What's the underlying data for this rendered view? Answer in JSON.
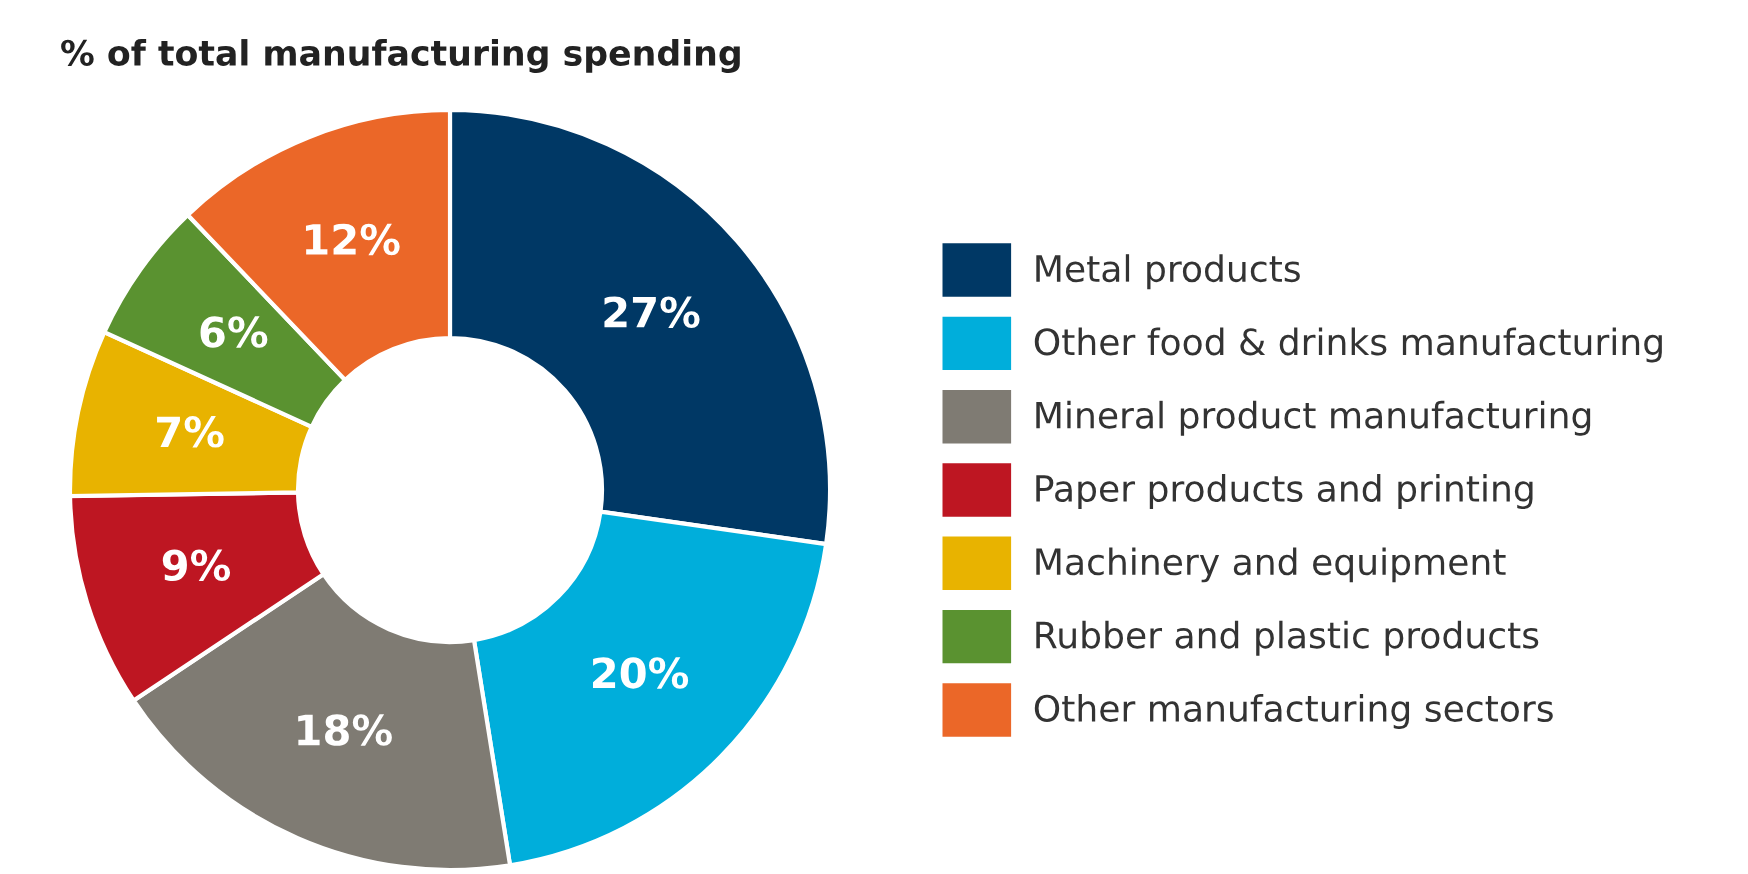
{
  "chart_data": {
    "type": "donut",
    "title": "% of total manufacturing spending",
    "categories": [
      "Metal products",
      "Other food & drinks manufacturing",
      "Mineral product manufacturing",
      "Paper products and printing",
      "Machinery and equipment",
      "Rubber and plastic products",
      "Other manufacturing sectors"
    ],
    "values": [
      27,
      20,
      18,
      9,
      7,
      6,
      12
    ],
    "colors": [
      "#003865",
      "#00aedb",
      "#7f7b73",
      "#be1622",
      "#e8b300",
      "#5a9230",
      "#eb6728"
    ],
    "value_labels": [
      "27%",
      "20%",
      "18%",
      "9%",
      "7%",
      "6%",
      "12%"
    ],
    "legend": "right"
  }
}
